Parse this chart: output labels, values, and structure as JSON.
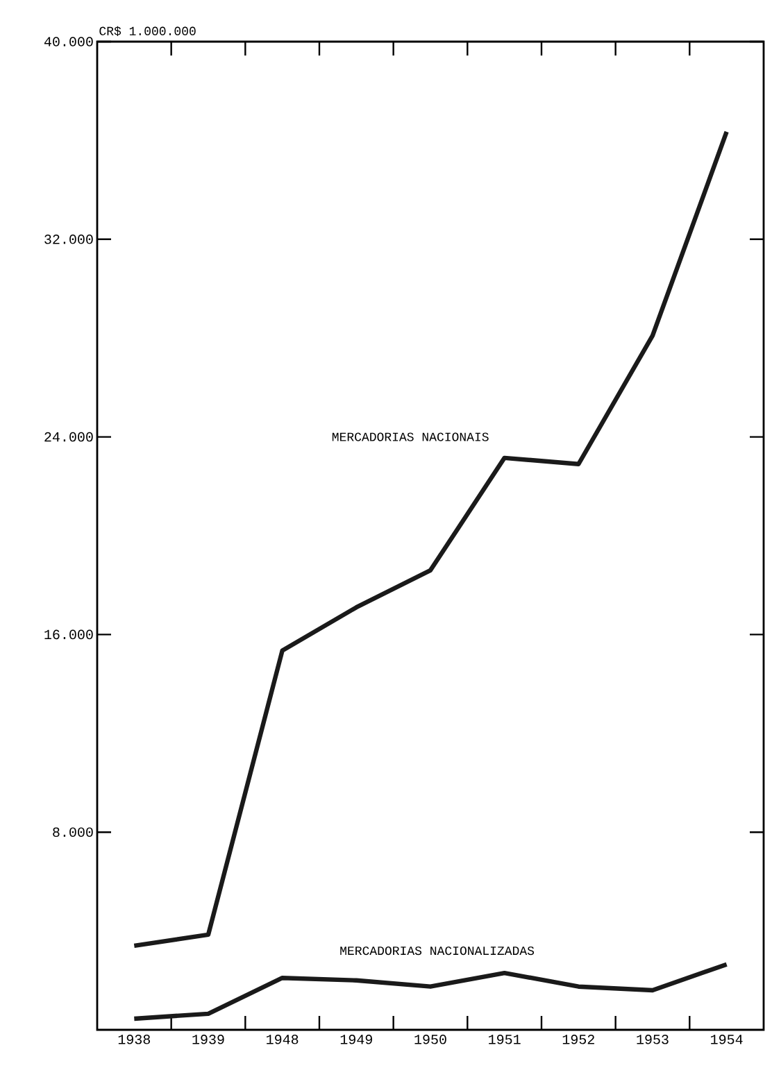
{
  "chart_data": {
    "type": "line",
    "ylabel": "CR$ 1.000.000",
    "categories": [
      "1938",
      "1939",
      "1948",
      "1949",
      "1950",
      "1951",
      "1952",
      "1953",
      "1954"
    ],
    "ylim": [
      0,
      40000
    ],
    "yticks": [
      {
        "value": 8000,
        "label": "8.000"
      },
      {
        "value": 16000,
        "label": "16.000"
      },
      {
        "value": 24000,
        "label": "24.000"
      },
      {
        "value": 32000,
        "label": "32.000"
      },
      {
        "value": 40000,
        "label": "40.000"
      }
    ],
    "marker": "none",
    "line_style": "solid",
    "series": [
      {
        "name": "MERCADORIAS NACIONAIS",
        "color": "#1a1a1a",
        "values": [
          3400,
          3850,
          15350,
          17100,
          18600,
          23150,
          22900,
          28100,
          36350
        ]
      },
      {
        "name": "MERCADORIAS NACIONALIZADAS",
        "color": "#1a1a1a",
        "values": [
          450,
          650,
          2100,
          2000,
          1750,
          2300,
          1750,
          1600,
          2650
        ]
      }
    ]
  }
}
